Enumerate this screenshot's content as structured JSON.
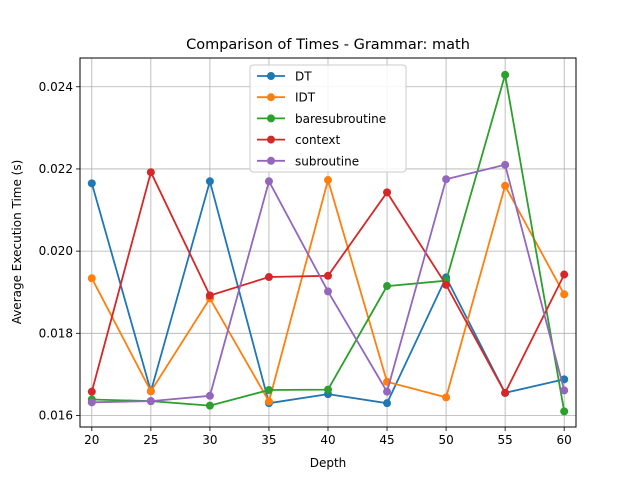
{
  "chart_data": {
    "type": "line",
    "title": "Comparison of Times - Grammar: math",
    "xlabel": "Depth",
    "ylabel": "Average Execution Time (s)",
    "x": [
      20,
      25,
      30,
      35,
      40,
      45,
      50,
      55,
      60
    ],
    "xlim": [
      19,
      61
    ],
    "ylim": [
      0.01572,
      0.0247
    ],
    "xticks": [
      "20",
      "25",
      "30",
      "35",
      "40",
      "45",
      "50",
      "55",
      "60"
    ],
    "yticks": [
      "0.016",
      "0.018",
      "0.020",
      "0.022",
      "0.024"
    ],
    "ytick_values": [
      0.016,
      0.018,
      0.02,
      0.022,
      0.024
    ],
    "grid": true,
    "legend": "upper-center",
    "series": [
      {
        "name": "DT",
        "color": "#1f77b4",
        "values": [
          0.02165,
          0.01659,
          0.0217,
          0.0163,
          0.01652,
          0.0163,
          0.01936,
          0.01655,
          0.01688
        ]
      },
      {
        "name": "IDT",
        "color": "#ff7f0e",
        "values": [
          0.01934,
          0.01659,
          0.01885,
          0.01634,
          0.02173,
          0.01682,
          0.01644,
          0.02159,
          0.01895
        ]
      },
      {
        "name": "baresubroutine",
        "color": "#2ca02c",
        "values": [
          0.01639,
          0.01635,
          0.01624,
          0.01662,
          0.01663,
          0.01915,
          0.01928,
          0.02429,
          0.0161
        ]
      },
      {
        "name": "context",
        "color": "#d62728",
        "values": [
          0.01658,
          0.02192,
          0.01892,
          0.01937,
          0.0194,
          0.02143,
          0.01918,
          0.01655,
          0.01943
        ]
      },
      {
        "name": "subroutine",
        "color": "#9467bd",
        "values": [
          0.01632,
          0.01635,
          0.01648,
          0.0217,
          0.01902,
          0.01658,
          0.02175,
          0.0221,
          0.01661
        ]
      }
    ]
  }
}
